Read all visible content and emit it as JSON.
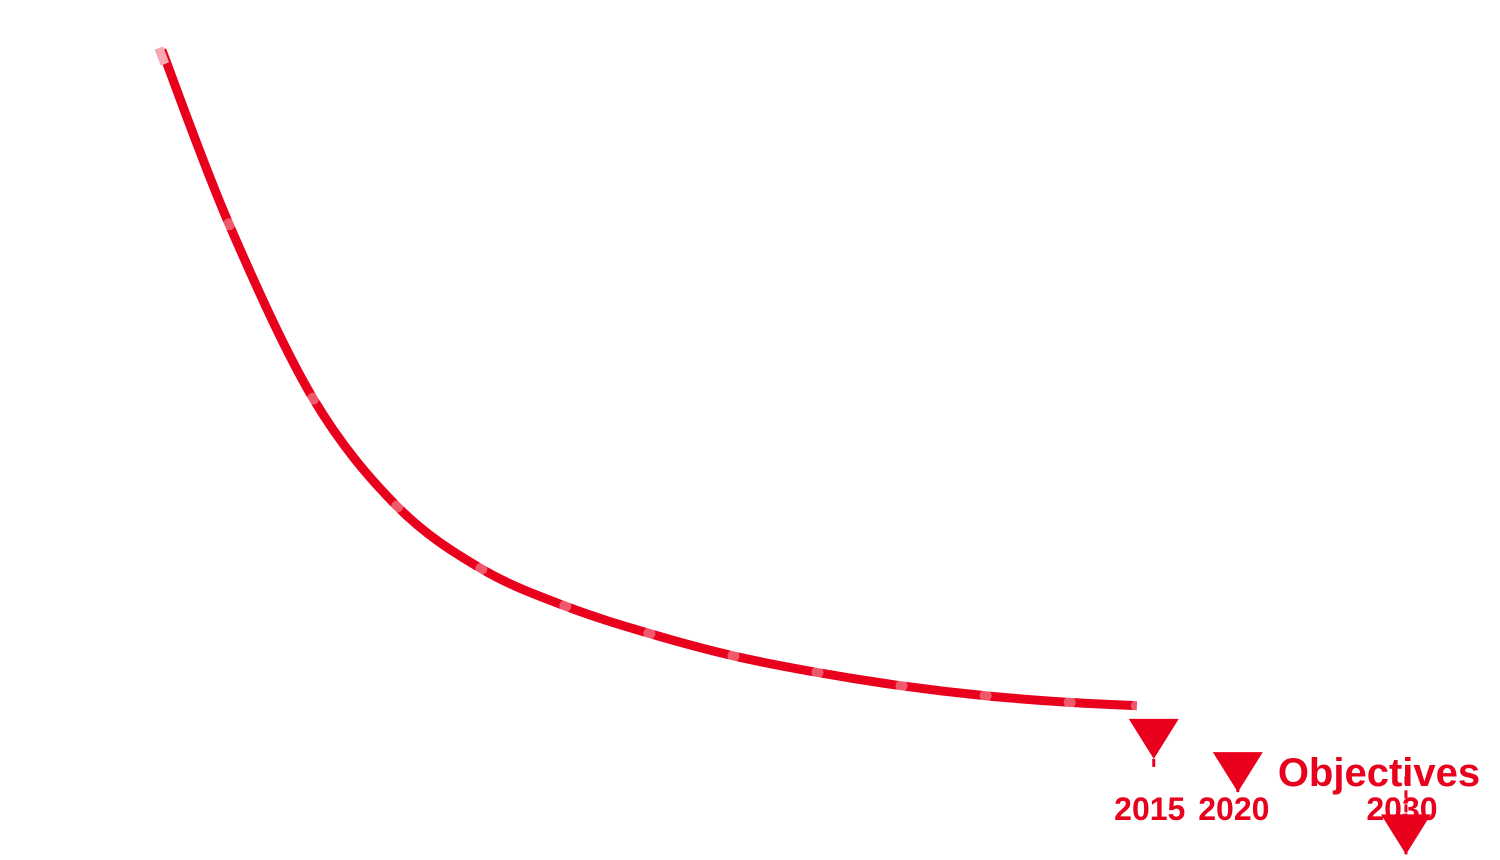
{
  "colors": {
    "accent": "#E8001C",
    "highlight": "#F6A8B3"
  },
  "icons": {
    "marker": "triangle-down-marker"
  },
  "legend": {
    "label": "Objectives"
  },
  "chart_data": {
    "type": "line",
    "title": "",
    "xlabel": "",
    "ylabel": "",
    "y_unit": "relative",
    "xlim": [
      1950,
      2035
    ],
    "ylim": [
      0,
      100
    ],
    "grid": false,
    "legend_position": "right",
    "series": [
      {
        "x": [
          1956,
          1960,
          1965,
          1970,
          1975,
          1980,
          1985,
          1990,
          1995,
          2000,
          2005,
          2010,
          2014
        ],
        "y": [
          100,
          79,
          58,
          45,
          37.5,
          33,
          29.7,
          27,
          25,
          23.4,
          22.2,
          21.4,
          21
        ]
      }
    ],
    "objectives": [
      {
        "year": "2015",
        "x": 2015,
        "y": 17
      },
      {
        "year": "2020",
        "x": 2020,
        "y": 13
      },
      {
        "year": "2030",
        "x": 2030,
        "y": 5.5
      }
    ]
  }
}
